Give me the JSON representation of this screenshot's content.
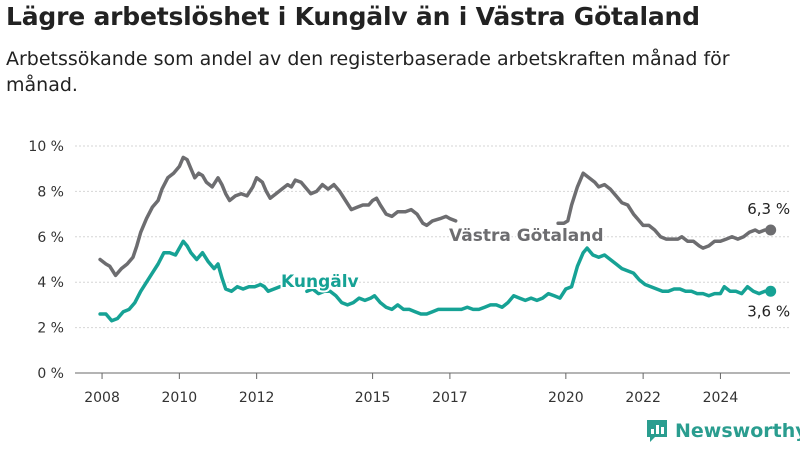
{
  "header": {
    "title": "Lägre arbetslöshet i Kungälv än i Västra Götaland",
    "subtitle": "Arbetssökande som andel av den registerbaserade arbetskraften månad för månad."
  },
  "brand": {
    "name": "Newsworthy",
    "icon": "bar-chart-logo-icon",
    "color": "#2a9d8f"
  },
  "chart_data": {
    "type": "line",
    "y_ticks": [
      "0 %",
      "2 %",
      "4 %",
      "6 %",
      "8 %",
      "10 %"
    ],
    "x_ticks": [
      "2008",
      "2010",
      "2012",
      "2015",
      "2017",
      "2020",
      "2022",
      "2024"
    ],
    "ylim": [
      0,
      10
    ],
    "xlim": [
      2007.3,
      2025.8
    ],
    "grid": true,
    "series": [
      {
        "name": "Västra Götaland",
        "color": "#6d6d70",
        "end_label": "6,3 %",
        "points": [
          [
            2007.95,
            5.0
          ],
          [
            2008.1,
            4.8
          ],
          [
            2008.2,
            4.7
          ],
          [
            2008.35,
            4.3
          ],
          [
            2008.5,
            4.6
          ],
          [
            2008.65,
            4.8
          ],
          [
            2008.8,
            5.1
          ],
          [
            2008.9,
            5.6
          ],
          [
            2009.0,
            6.2
          ],
          [
            2009.15,
            6.8
          ],
          [
            2009.3,
            7.3
          ],
          [
            2009.45,
            7.6
          ],
          [
            2009.55,
            8.1
          ],
          [
            2009.7,
            8.6
          ],
          [
            2009.85,
            8.8
          ],
          [
            2010.0,
            9.1
          ],
          [
            2010.1,
            9.5
          ],
          [
            2010.2,
            9.4
          ],
          [
            2010.3,
            9.0
          ],
          [
            2010.4,
            8.6
          ],
          [
            2010.5,
            8.8
          ],
          [
            2010.6,
            8.7
          ],
          [
            2010.7,
            8.4
          ],
          [
            2010.85,
            8.2
          ],
          [
            2011.0,
            8.6
          ],
          [
            2011.1,
            8.3
          ],
          [
            2011.2,
            7.9
          ],
          [
            2011.3,
            7.6
          ],
          [
            2011.45,
            7.8
          ],
          [
            2011.6,
            7.9
          ],
          [
            2011.75,
            7.8
          ],
          [
            2011.9,
            8.2
          ],
          [
            2012.0,
            8.6
          ],
          [
            2012.15,
            8.4
          ],
          [
            2012.25,
            8.0
          ],
          [
            2012.35,
            7.7
          ],
          [
            2012.5,
            7.9
          ],
          [
            2012.65,
            8.1
          ],
          [
            2012.8,
            8.3
          ],
          [
            2012.9,
            8.2
          ],
          [
            2013.0,
            8.5
          ],
          [
            2013.15,
            8.4
          ],
          [
            2013.3,
            8.1
          ],
          [
            2013.4,
            7.9
          ],
          [
            2013.55,
            8.0
          ],
          [
            2013.7,
            8.3
          ],
          [
            2013.85,
            8.1
          ],
          [
            2014.0,
            8.3
          ],
          [
            2014.15,
            8.0
          ],
          [
            2014.3,
            7.6
          ],
          [
            2014.45,
            7.2
          ],
          [
            2014.6,
            7.3
          ],
          [
            2014.75,
            7.4
          ],
          [
            2014.9,
            7.4
          ],
          [
            2015.0,
            7.6
          ],
          [
            2015.1,
            7.7
          ],
          [
            2015.2,
            7.4
          ],
          [
            2015.35,
            7.0
          ],
          [
            2015.5,
            6.9
          ],
          [
            2015.65,
            7.1
          ],
          [
            2015.85,
            7.1
          ],
          [
            2016.0,
            7.2
          ],
          [
            2016.15,
            7.0
          ],
          [
            2016.3,
            6.6
          ],
          [
            2016.4,
            6.5
          ],
          [
            2016.55,
            6.7
          ],
          [
            2016.75,
            6.8
          ],
          [
            2016.9,
            6.9
          ],
          [
            2017.0,
            6.8
          ],
          [
            2017.15,
            6.7
          ],
          null,
          [
            2019.8,
            6.6
          ],
          [
            2019.95,
            6.6
          ],
          [
            2020.05,
            6.7
          ],
          [
            2020.15,
            7.4
          ],
          [
            2020.3,
            8.2
          ],
          [
            2020.45,
            8.8
          ],
          [
            2020.6,
            8.6
          ],
          [
            2020.75,
            8.4
          ],
          [
            2020.85,
            8.2
          ],
          [
            2021.0,
            8.3
          ],
          [
            2021.15,
            8.1
          ],
          [
            2021.3,
            7.8
          ],
          [
            2021.45,
            7.5
          ],
          [
            2021.6,
            7.4
          ],
          [
            2021.75,
            7.0
          ],
          [
            2021.9,
            6.7
          ],
          [
            2022.0,
            6.5
          ],
          [
            2022.15,
            6.5
          ],
          [
            2022.3,
            6.3
          ],
          [
            2022.45,
            6.0
          ],
          [
            2022.6,
            5.9
          ],
          [
            2022.75,
            5.9
          ],
          [
            2022.9,
            5.9
          ],
          [
            2023.0,
            6.0
          ],
          [
            2023.15,
            5.8
          ],
          [
            2023.3,
            5.8
          ],
          [
            2023.45,
            5.6
          ],
          [
            2023.55,
            5.5
          ],
          [
            2023.7,
            5.6
          ],
          [
            2023.85,
            5.8
          ],
          [
            2024.0,
            5.8
          ],
          [
            2024.15,
            5.9
          ],
          [
            2024.3,
            6.0
          ],
          [
            2024.45,
            5.9
          ],
          [
            2024.6,
            6.0
          ],
          [
            2024.75,
            6.2
          ],
          [
            2024.9,
            6.3
          ],
          [
            2025.0,
            6.2
          ],
          [
            2025.15,
            6.3
          ],
          [
            2025.3,
            6.3
          ]
        ]
      },
      {
        "name": "Kungälv",
        "color": "#16a295",
        "end_label": "3,6 %",
        "points": [
          [
            2007.95,
            2.6
          ],
          [
            2008.1,
            2.6
          ],
          [
            2008.25,
            2.3
          ],
          [
            2008.4,
            2.4
          ],
          [
            2008.55,
            2.7
          ],
          [
            2008.7,
            2.8
          ],
          [
            2008.85,
            3.1
          ],
          [
            2009.0,
            3.6
          ],
          [
            2009.15,
            4.0
          ],
          [
            2009.3,
            4.4
          ],
          [
            2009.45,
            4.8
          ],
          [
            2009.6,
            5.3
          ],
          [
            2009.75,
            5.3
          ],
          [
            2009.9,
            5.2
          ],
          [
            2010.0,
            5.5
          ],
          [
            2010.1,
            5.8
          ],
          [
            2010.2,
            5.6
          ],
          [
            2010.3,
            5.3
          ],
          [
            2010.45,
            5.0
          ],
          [
            2010.6,
            5.3
          ],
          [
            2010.75,
            4.9
          ],
          [
            2010.9,
            4.6
          ],
          [
            2011.0,
            4.8
          ],
          [
            2011.1,
            4.2
          ],
          [
            2011.2,
            3.7
          ],
          [
            2011.35,
            3.6
          ],
          [
            2011.5,
            3.8
          ],
          [
            2011.65,
            3.7
          ],
          [
            2011.8,
            3.8
          ],
          [
            2011.95,
            3.8
          ],
          [
            2012.1,
            3.9
          ],
          [
            2012.2,
            3.8
          ],
          [
            2012.3,
            3.6
          ],
          [
            2012.45,
            3.7
          ],
          [
            2012.6,
            3.8
          ],
          null,
          [
            2013.3,
            3.6
          ],
          [
            2013.45,
            3.7
          ],
          [
            2013.6,
            3.5
          ],
          [
            2013.75,
            3.6
          ],
          [
            2013.9,
            3.6
          ],
          [
            2014.05,
            3.4
          ],
          [
            2014.2,
            3.1
          ],
          [
            2014.35,
            3.0
          ],
          [
            2014.5,
            3.1
          ],
          [
            2014.65,
            3.3
          ],
          [
            2014.8,
            3.2
          ],
          [
            2014.95,
            3.3
          ],
          [
            2015.05,
            3.4
          ],
          [
            2015.2,
            3.1
          ],
          [
            2015.35,
            2.9
          ],
          [
            2015.5,
            2.8
          ],
          [
            2015.65,
            3.0
          ],
          [
            2015.8,
            2.8
          ],
          [
            2015.95,
            2.8
          ],
          [
            2016.1,
            2.7
          ],
          [
            2016.25,
            2.6
          ],
          [
            2016.4,
            2.6
          ],
          [
            2016.55,
            2.7
          ],
          [
            2016.7,
            2.8
          ],
          [
            2016.85,
            2.8
          ],
          [
            2017.0,
            2.8
          ],
          [
            2017.15,
            2.8
          ],
          [
            2017.3,
            2.8
          ],
          [
            2017.45,
            2.9
          ],
          [
            2017.6,
            2.8
          ],
          [
            2017.75,
            2.8
          ],
          [
            2017.9,
            2.9
          ],
          [
            2018.05,
            3.0
          ],
          [
            2018.2,
            3.0
          ],
          [
            2018.35,
            2.9
          ],
          [
            2018.5,
            3.1
          ],
          [
            2018.65,
            3.4
          ],
          [
            2018.8,
            3.3
          ],
          [
            2018.95,
            3.2
          ],
          [
            2019.1,
            3.3
          ],
          [
            2019.25,
            3.2
          ],
          [
            2019.4,
            3.3
          ],
          [
            2019.55,
            3.5
          ],
          [
            2019.7,
            3.4
          ],
          [
            2019.85,
            3.3
          ],
          [
            2020.0,
            3.7
          ],
          [
            2020.15,
            3.8
          ],
          [
            2020.3,
            4.7
          ],
          [
            2020.45,
            5.3
          ],
          [
            2020.55,
            5.5
          ],
          [
            2020.7,
            5.2
          ],
          [
            2020.85,
            5.1
          ],
          [
            2021.0,
            5.2
          ],
          [
            2021.15,
            5.0
          ],
          [
            2021.3,
            4.8
          ],
          [
            2021.45,
            4.6
          ],
          [
            2021.6,
            4.5
          ],
          [
            2021.75,
            4.4
          ],
          [
            2021.9,
            4.1
          ],
          [
            2022.05,
            3.9
          ],
          [
            2022.2,
            3.8
          ],
          [
            2022.35,
            3.7
          ],
          [
            2022.5,
            3.6
          ],
          [
            2022.65,
            3.6
          ],
          [
            2022.8,
            3.7
          ],
          [
            2022.95,
            3.7
          ],
          [
            2023.1,
            3.6
          ],
          [
            2023.25,
            3.6
          ],
          [
            2023.4,
            3.5
          ],
          [
            2023.55,
            3.5
          ],
          [
            2023.7,
            3.4
          ],
          [
            2023.85,
            3.5
          ],
          [
            2024.0,
            3.5
          ],
          [
            2024.1,
            3.8
          ],
          [
            2024.25,
            3.6
          ],
          [
            2024.4,
            3.6
          ],
          [
            2024.55,
            3.5
          ],
          [
            2024.7,
            3.8
          ],
          [
            2024.85,
            3.6
          ],
          [
            2025.0,
            3.5
          ],
          [
            2025.15,
            3.6
          ],
          [
            2025.3,
            3.6
          ]
        ]
      }
    ]
  }
}
